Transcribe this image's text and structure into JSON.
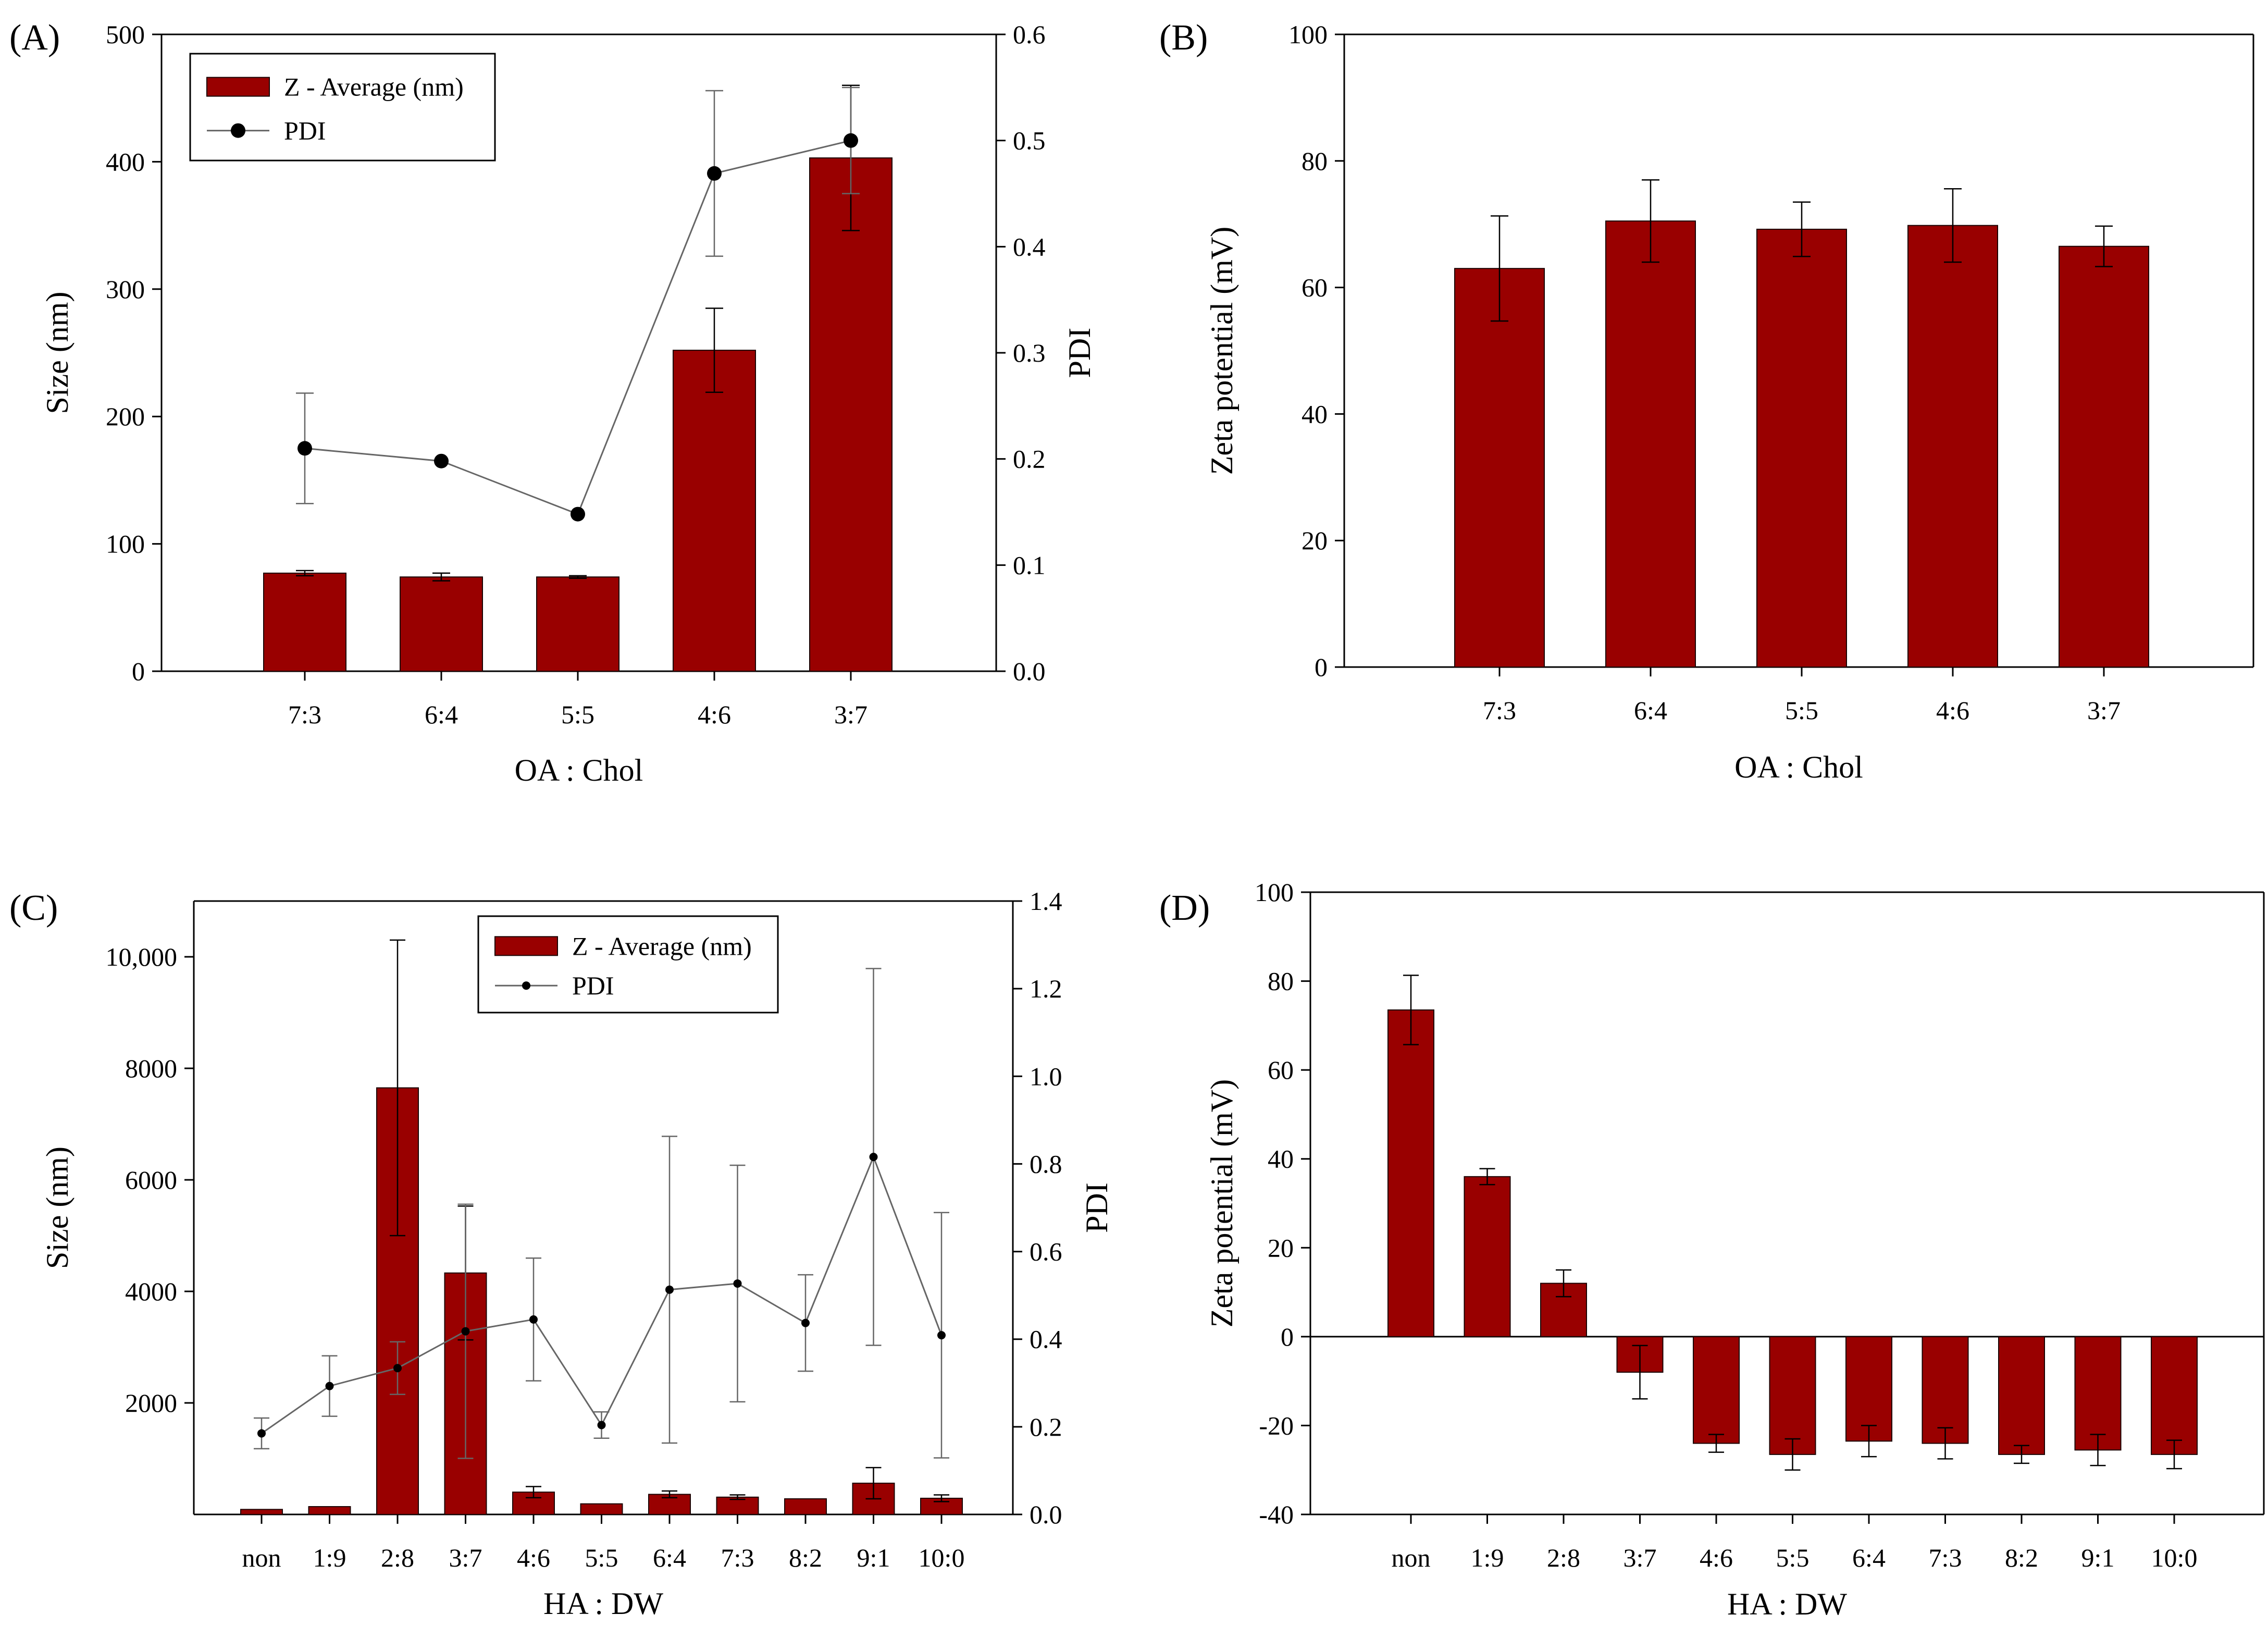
{
  "style": {
    "bar_fill": "#990000",
    "bar_stroke": "#1a0000",
    "line_color": "#666666",
    "marker_color": "#000000",
    "axis_color": "#000000"
  },
  "panels": {
    "A": {
      "label": "(A)"
    },
    "B": {
      "label": "(B)"
    },
    "C": {
      "label": "(C)"
    },
    "D": {
      "label": "(D)"
    }
  },
  "chart_data": [
    {
      "id": "A",
      "type": "bar",
      "categories": [
        "7:3",
        "6:4",
        "5:5",
        "4:6",
        "3:7"
      ],
      "xlabel": "OA : Chol",
      "ylabel": "Size (nm)",
      "ylim": [
        0,
        500
      ],
      "yticks": [
        0,
        100,
        200,
        300,
        400,
        500
      ],
      "ytick_labels": [
        "0",
        "100",
        "200",
        "300",
        "400",
        "500"
      ],
      "y2label": "PDI",
      "y2lim": [
        0,
        0.6
      ],
      "y2ticks": [
        0,
        0.1,
        0.2,
        0.3,
        0.4,
        0.5,
        0.6
      ],
      "y2tick_labels": [
        "0.0",
        "0.1",
        "0.2",
        "0.3",
        "0.4",
        "0.5",
        "0.6"
      ],
      "grid": false,
      "legend": {
        "position": "top-left",
        "entries": [
          "Z - Average (nm)",
          "PDI"
        ]
      },
      "series": [
        {
          "name": "Z - Average (nm)",
          "type": "bar",
          "axis": "left",
          "values": [
            77,
            74,
            74,
            252,
            403
          ],
          "errors": [
            2,
            3,
            1,
            33,
            57
          ]
        },
        {
          "name": "PDI",
          "type": "line",
          "axis": "right",
          "values": [
            0.21,
            0.198,
            0.148,
            0.469,
            0.5
          ],
          "errors": [
            0.052,
            0,
            0,
            0.078,
            0.05
          ]
        }
      ]
    },
    {
      "id": "B",
      "type": "bar",
      "categories": [
        "7:3",
        "6:4",
        "5:5",
        "4:6",
        "3:7"
      ],
      "xlabel": "OA : Chol",
      "ylabel": "Zeta potential (mV)",
      "ylim": [
        0,
        100
      ],
      "yticks": [
        0,
        20,
        40,
        60,
        80,
        100
      ],
      "ytick_labels": [
        "0",
        "20",
        "40",
        "60",
        "80",
        "100"
      ],
      "grid": false,
      "series": [
        {
          "values": [
            63,
            70.5,
            69.2,
            69.8,
            66.5
          ],
          "errors": [
            8.3,
            6.5,
            4.3,
            5.8,
            3.2
          ]
        }
      ]
    },
    {
      "id": "C",
      "type": "bar",
      "categories": [
        "non",
        "1:9",
        "2:8",
        "3:7",
        "4:6",
        "5:5",
        "6:4",
        "7:3",
        "8:2",
        "9:1",
        "10:0"
      ],
      "xlabel": "HA : DW",
      "ylabel": "Size (nm)",
      "ylim": [
        0,
        11000
      ],
      "yticks": [
        2000,
        4000,
        6000,
        8000,
        10000
      ],
      "ytick_labels": [
        "2000",
        "4000",
        "6000",
        "8000",
        "10,000"
      ],
      "y2label": "PDI",
      "y2lim": [
        0,
        1.4
      ],
      "y2ticks": [
        0,
        0.2,
        0.4,
        0.6,
        0.8,
        1.0,
        1.2,
        1.4
      ],
      "y2tick_labels": [
        "0.0",
        "0.2",
        "0.4",
        "0.6",
        "0.8",
        "1.0",
        "1.2",
        "1.4"
      ],
      "grid": false,
      "legend": {
        "position": "top-center",
        "entries": [
          "Z - Average (nm)",
          "PDI"
        ]
      },
      "series": [
        {
          "name": "Z - Average (nm)",
          "type": "bar",
          "axis": "left",
          "values": [
            90,
            140,
            7650,
            4330,
            400,
            190,
            360,
            310,
            280,
            560,
            290
          ],
          "errors": [
            0,
            0,
            2650,
            1200,
            100,
            0,
            60,
            40,
            0,
            280,
            60
          ]
        },
        {
          "name": "PDI",
          "type": "line",
          "axis": "right",
          "values": [
            0.185,
            0.293,
            0.334,
            0.418,
            0.445,
            0.204,
            0.513,
            0.527,
            0.437,
            0.816,
            0.409
          ],
          "errors": [
            0.035,
            0.069,
            0.06,
            0.29,
            0.14,
            0.03,
            0.35,
            0.27,
            0.11,
            0.43,
            0.28
          ]
        }
      ]
    },
    {
      "id": "D",
      "type": "bar",
      "categories": [
        "non",
        "1:9",
        "2:8",
        "3:7",
        "4:6",
        "5:5",
        "6:4",
        "7:3",
        "8:2",
        "9:1",
        "10:0"
      ],
      "xlabel": "HA : DW",
      "ylabel": "Zeta potential (mV)",
      "ylim": [
        -40,
        100
      ],
      "yticks": [
        -40,
        -20,
        0,
        20,
        40,
        60,
        80,
        100
      ],
      "ytick_labels": [
        "-40",
        "-20",
        "0",
        "20",
        "40",
        "60",
        "80",
        "100"
      ],
      "grid": false,
      "series": [
        {
          "values": [
            73.5,
            36,
            12,
            -8,
            -24,
            -26.5,
            -23.5,
            -24,
            -26.5,
            -25.5,
            -26.5
          ],
          "errors": [
            7.8,
            1.8,
            3,
            6,
            2,
            3.5,
            3.5,
            3.5,
            2,
            3.5,
            3.2
          ]
        }
      ]
    }
  ]
}
